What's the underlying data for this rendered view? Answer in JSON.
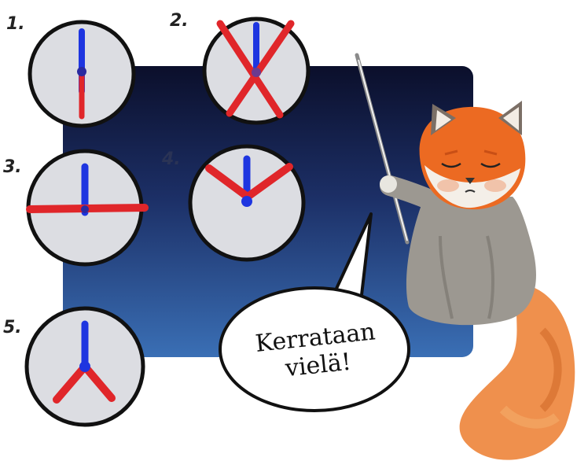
{
  "numbers": [
    "1.",
    "2.",
    "3.",
    "4.",
    "5."
  ],
  "speech": "Kerrataan vielä!",
  "colors": {
    "board_top": "#0b0f2b",
    "board_bottom": "#3a6fb5",
    "clock_face": "#dcdde2",
    "hand_blue": "#1e35e0",
    "hand_red": "#e0262a",
    "panda_orange": "#ec6a22",
    "panda_body": "#9c9891"
  },
  "icons": [
    "clock-icon",
    "red-panda-teacher",
    "pointer-stick",
    "speech-bubble"
  ]
}
